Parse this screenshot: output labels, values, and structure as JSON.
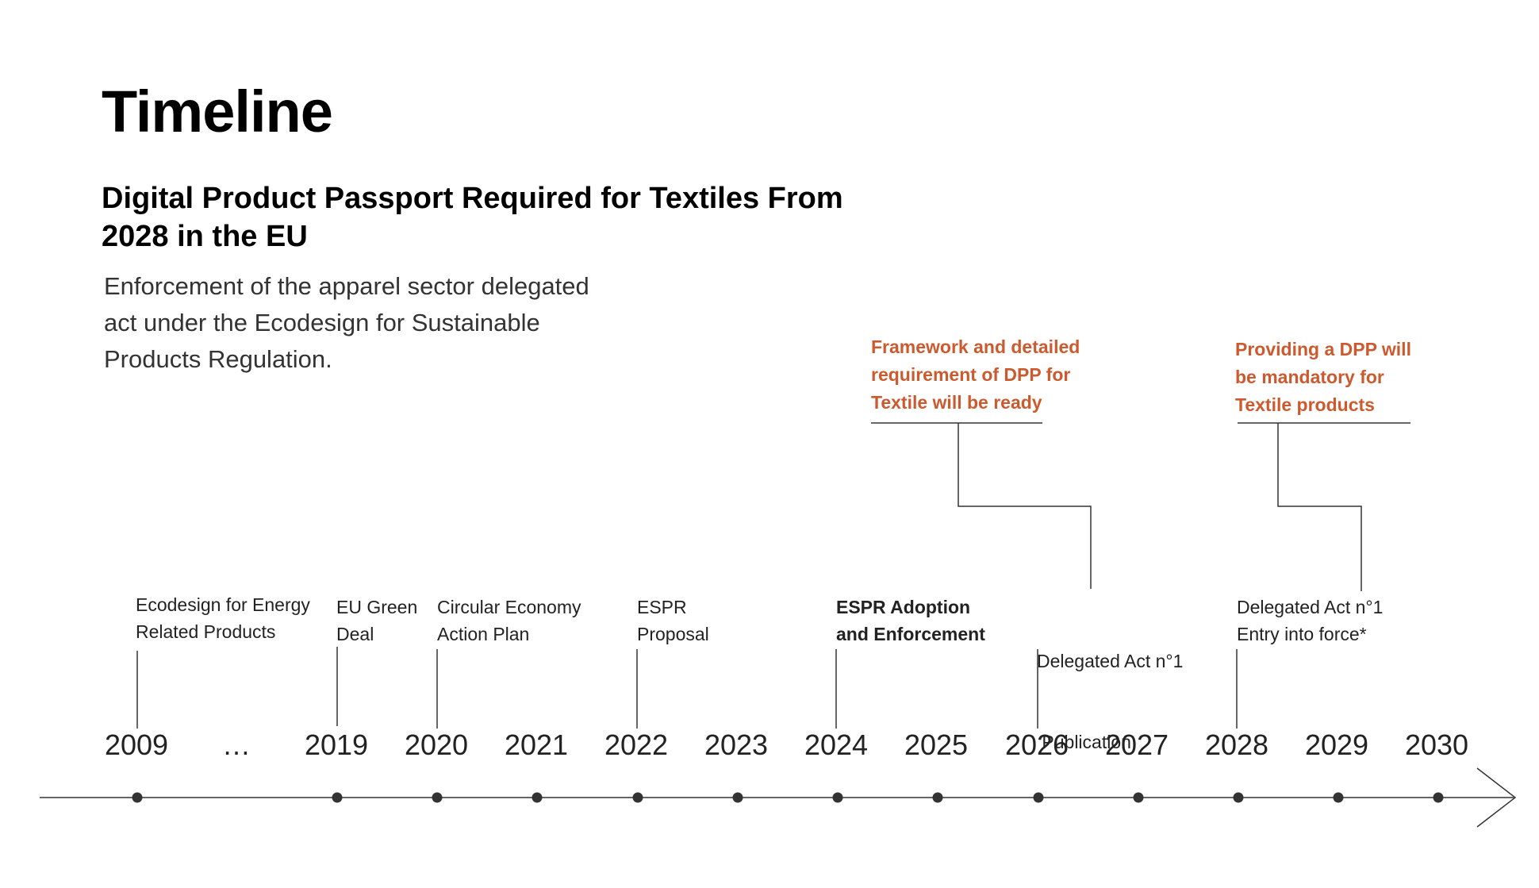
{
  "title": "Timeline",
  "subtitle_lines": [
    "Digital Product Passport Required for Textiles From",
    "2028 in the EU"
  ],
  "description_lines": [
    "Enforcement of the apparel sector delegated",
    "act under the Ecodesign for Sustainable",
    "Products Regulation."
  ],
  "callouts": [
    {
      "lines": [
        "Framework and detailed",
        "requirement of DPP for",
        "Textile will be ready"
      ]
    },
    {
      "lines": [
        "Providing a DPP will",
        "be mandatory for",
        "Textile products"
      ]
    }
  ],
  "years": [
    "2009",
    "…",
    "2019",
    "2020",
    "2021",
    "2022",
    "2023",
    "2024",
    "2025",
    "2026",
    "2027",
    "2028",
    "2029",
    "2030"
  ],
  "events": [
    {
      "year": "2009",
      "lines": [
        "Ecodesign for Energy",
        "Related Products"
      ],
      "bold": false
    },
    {
      "year": "2019",
      "lines": [
        "EU Green",
        "Deal"
      ],
      "bold": false
    },
    {
      "year": "2020",
      "lines": [
        "Circular Economy",
        "Action Plan"
      ],
      "bold": false
    },
    {
      "year": "2022",
      "lines": [
        "ESPR",
        "Proposal"
      ],
      "bold": false
    },
    {
      "year": "2024",
      "lines": [
        "ESPR Adoption",
        "and Enforcement"
      ],
      "bold": true
    },
    {
      "year": "2026",
      "lines": [
        "Delegated Act n°1",
        " Publication"
      ],
      "bold": false
    },
    {
      "year": "2028",
      "lines": [
        "Delegated Act n°1",
        "Entry into force*"
      ],
      "bold": false
    }
  ],
  "colors": {
    "accent": "#cc5a2e",
    "line": "#333333",
    "text": "#222222"
  }
}
